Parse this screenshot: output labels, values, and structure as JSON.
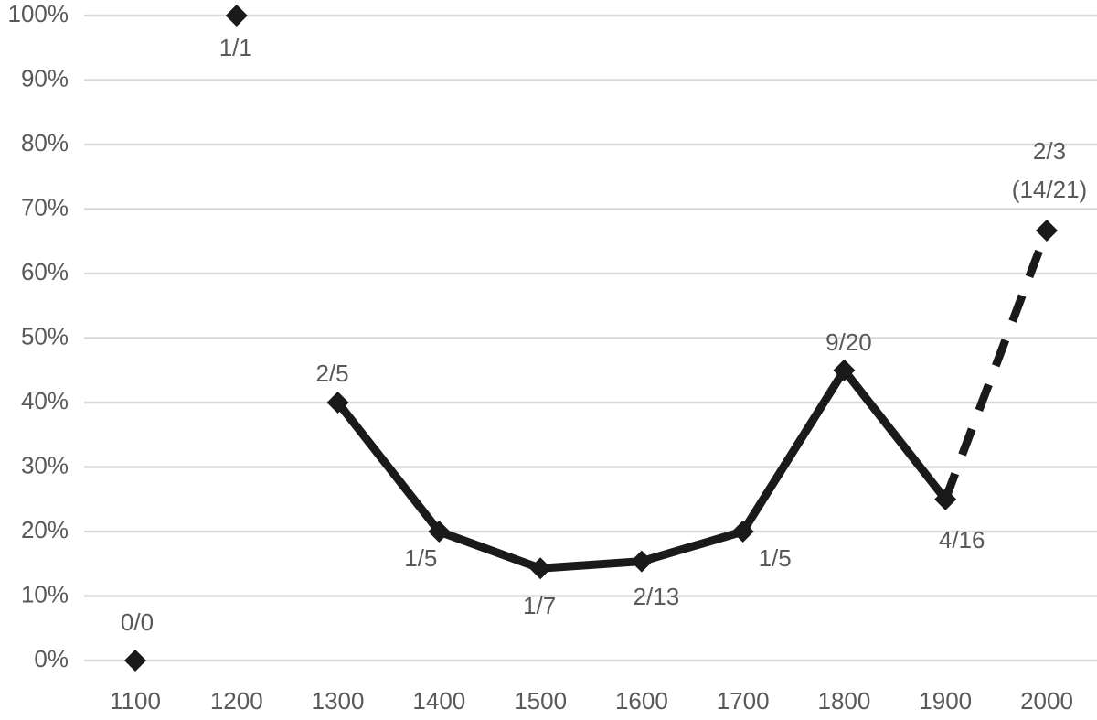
{
  "chart_data": {
    "type": "line",
    "categories": [
      "1100",
      "1200",
      "1300",
      "1400",
      "1500",
      "1600",
      "1700",
      "1800",
      "1900",
      "2000"
    ],
    "series": [
      {
        "color": "#1a1a1a",
        "line": "none",
        "values": [
          0,
          100,
          null,
          null,
          null,
          null,
          null,
          null,
          null,
          null
        ],
        "value_labels": [
          "0/0",
          "1/1",
          null,
          null,
          null,
          null,
          null,
          null,
          null,
          null
        ]
      },
      {
        "color": "#1a1a1a",
        "line": "solid",
        "values": [
          null,
          null,
          40,
          20,
          14.29,
          15.38,
          20,
          45,
          25,
          null
        ],
        "value_labels": [
          null,
          null,
          "2/5",
          "1/5",
          "1/7",
          "2/13",
          "1/5",
          "9/20",
          "4/16",
          null
        ]
      },
      {
        "color": "#1a1a1a",
        "line": "dashed",
        "values": [
          null,
          null,
          null,
          null,
          null,
          null,
          null,
          null,
          25,
          66.67
        ],
        "value_labels": [
          null,
          null,
          null,
          null,
          null,
          null,
          null,
          null,
          null,
          "2/3\n(14/21)"
        ]
      }
    ],
    "ylim": [
      0,
      100
    ],
    "yticks": [
      {
        "value": 0,
        "label": "0%"
      },
      {
        "value": 10,
        "label": "10%"
      },
      {
        "value": 20,
        "label": "20%"
      },
      {
        "value": 30,
        "label": "30%"
      },
      {
        "value": 40,
        "label": "40%"
      },
      {
        "value": 50,
        "label": "50%"
      },
      {
        "value": 60,
        "label": "60%"
      },
      {
        "value": 70,
        "label": "70%"
      },
      {
        "value": 80,
        "label": "80%"
      },
      {
        "value": 90,
        "label": "90%"
      },
      {
        "value": 100,
        "label": "100%"
      }
    ],
    "grid": true
  }
}
